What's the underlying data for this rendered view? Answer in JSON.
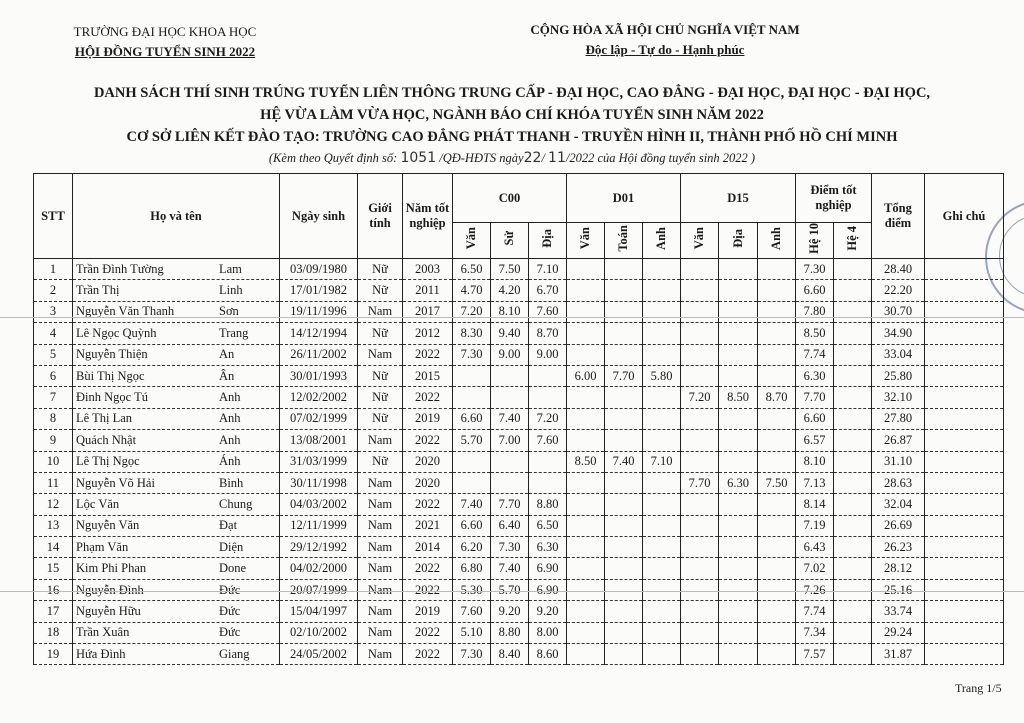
{
  "header_left": {
    "line1": "TRƯỜNG ĐẠI HỌC KHOA HỌC",
    "line2": "HỘI ĐỒNG TUYỂN SINH 2022"
  },
  "header_right": {
    "line1": "CỘNG HÒA XÃ HỘI CHỦ NGHĨA VIỆT NAM",
    "line2": "Độc lập - Tự do - Hạnh phúc"
  },
  "title": {
    "line1": "DANH SÁCH THÍ SINH TRÚNG TUYỂN LIÊN THÔNG TRUNG CẤP - ĐẠI HỌC, CAO ĐẲNG - ĐẠI HỌC, ĐẠI HỌC - ĐẠI HỌC,",
    "line2": "HỆ VỪA LÀM VỪA HỌC, NGÀNH BÁO CHÍ KHÓA TUYỂN SINH NĂM 2022",
    "line3": "CƠ SỞ LIÊN KẾT ĐÀO TẠO: TRƯỜNG CAO ĐẲNG PHÁT THANH - TRUYỀN HÌNH II, THÀNH PHỐ HỒ CHÍ MINH"
  },
  "attachment": {
    "prefix": "(Kèm theo Quyết định số: ",
    "decision_no": "1051",
    "mid": " /QĐ-HĐTS ngày",
    "day": "22",
    "sep": "/ ",
    "month": "11",
    "suffix": "/2022 của Hội đồng tuyển sinh 2022 )"
  },
  "columns": {
    "stt": "STT",
    "name": "Họ và tên",
    "dob": "Ngày sinh",
    "gender": "Giới tính",
    "year": "Năm tốt nghiệp",
    "c00": "C00",
    "d01": "D01",
    "d15": "D15",
    "grad": "Điểm tốt nghiệp",
    "total": "Tổng điểm",
    "note": "Ghi chú",
    "c00_sub": [
      "Văn",
      "Sử",
      "Địa"
    ],
    "d01_sub": [
      "Văn",
      "Toán",
      "Anh"
    ],
    "d15_sub": [
      "Văn",
      "Địa",
      "Anh"
    ],
    "grad_sub": [
      "Hệ 10",
      "Hệ 4"
    ]
  },
  "rows": [
    {
      "stt": "1",
      "surname": "Trần Đình Tường",
      "given": "Lam",
      "dob": "03/09/1980",
      "gender": "Nữ",
      "year": "2003",
      "c00": [
        "6.50",
        "7.50",
        "7.10"
      ],
      "d01": [
        "",
        "",
        ""
      ],
      "d15": [
        "",
        "",
        ""
      ],
      "h10": "7.30",
      "h4": "",
      "total": "28.40",
      "note": ""
    },
    {
      "stt": "2",
      "surname": "Trần Thị",
      "given": "Linh",
      "dob": "17/01/1982",
      "gender": "Nữ",
      "year": "2011",
      "c00": [
        "4.70",
        "4.20",
        "6.70"
      ],
      "d01": [
        "",
        "",
        ""
      ],
      "d15": [
        "",
        "",
        ""
      ],
      "h10": "6.60",
      "h4": "",
      "total": "22.20",
      "note": ""
    },
    {
      "stt": "3",
      "surname": "Nguyễn Văn Thanh",
      "given": "Sơn",
      "dob": "19/11/1996",
      "gender": "Nam",
      "year": "2017",
      "c00": [
        "7.20",
        "8.10",
        "7.60"
      ],
      "d01": [
        "",
        "",
        ""
      ],
      "d15": [
        "",
        "",
        ""
      ],
      "h10": "7.80",
      "h4": "",
      "total": "30.70",
      "note": ""
    },
    {
      "stt": "4",
      "surname": "Lê Ngọc Quỳnh",
      "given": "Trang",
      "dob": "14/12/1994",
      "gender": "Nữ",
      "year": "2012",
      "c00": [
        "8.30",
        "9.40",
        "8.70"
      ],
      "d01": [
        "",
        "",
        ""
      ],
      "d15": [
        "",
        "",
        ""
      ],
      "h10": "8.50",
      "h4": "",
      "total": "34.90",
      "note": ""
    },
    {
      "stt": "5",
      "surname": "Nguyễn Thiện",
      "given": "An",
      "dob": "26/11/2002",
      "gender": "Nam",
      "year": "2022",
      "c00": [
        "7.30",
        "9.00",
        "9.00"
      ],
      "d01": [
        "",
        "",
        ""
      ],
      "d15": [
        "",
        "",
        ""
      ],
      "h10": "7.74",
      "h4": "",
      "total": "33.04",
      "note": ""
    },
    {
      "stt": "6",
      "surname": "Bùi Thị Ngọc",
      "given": "Ân",
      "dob": "30/01/1993",
      "gender": "Nữ",
      "year": "2015",
      "c00": [
        "",
        "",
        ""
      ],
      "d01": [
        "6.00",
        "7.70",
        "5.80"
      ],
      "d15": [
        "",
        "",
        ""
      ],
      "h10": "6.30",
      "h4": "",
      "total": "25.80",
      "note": ""
    },
    {
      "stt": "7",
      "surname": "Đinh Ngọc Tú",
      "given": "Anh",
      "dob": "12/02/2002",
      "gender": "Nữ",
      "year": "2022",
      "c00": [
        "",
        "",
        ""
      ],
      "d01": [
        "",
        "",
        ""
      ],
      "d15": [
        "7.20",
        "8.50",
        "8.70"
      ],
      "h10": "7.70",
      "h4": "",
      "total": "32.10",
      "note": ""
    },
    {
      "stt": "8",
      "surname": "Lê Thị Lan",
      "given": "Anh",
      "dob": "07/02/1999",
      "gender": "Nữ",
      "year": "2019",
      "c00": [
        "6.60",
        "7.40",
        "7.20"
      ],
      "d01": [
        "",
        "",
        ""
      ],
      "d15": [
        "",
        "",
        ""
      ],
      "h10": "6.60",
      "h4": "",
      "total": "27.80",
      "note": ""
    },
    {
      "stt": "9",
      "surname": "Quách Nhật",
      "given": "Anh",
      "dob": "13/08/2001",
      "gender": "Nam",
      "year": "2022",
      "c00": [
        "5.70",
        "7.00",
        "7.60"
      ],
      "d01": [
        "",
        "",
        ""
      ],
      "d15": [
        "",
        "",
        ""
      ],
      "h10": "6.57",
      "h4": "",
      "total": "26.87",
      "note": ""
    },
    {
      "stt": "10",
      "surname": "Lê Thị Ngọc",
      "given": "Ánh",
      "dob": "31/03/1999",
      "gender": "Nữ",
      "year": "2020",
      "c00": [
        "",
        "",
        ""
      ],
      "d01": [
        "8.50",
        "7.40",
        "7.10"
      ],
      "d15": [
        "",
        "",
        ""
      ],
      "h10": "8.10",
      "h4": "",
      "total": "31.10",
      "note": ""
    },
    {
      "stt": "11",
      "surname": "Nguyễn Võ Hải",
      "given": "Bình",
      "dob": "30/11/1998",
      "gender": "Nam",
      "year": "2020",
      "c00": [
        "",
        "",
        ""
      ],
      "d01": [
        "",
        "",
        ""
      ],
      "d15": [
        "7.70",
        "6.30",
        "7.50"
      ],
      "h10": "7.13",
      "h4": "",
      "total": "28.63",
      "note": ""
    },
    {
      "stt": "12",
      "surname": "Lộc Văn",
      "given": "Chung",
      "dob": "04/03/2002",
      "gender": "Nam",
      "year": "2022",
      "c00": [
        "7.40",
        "7.70",
        "8.80"
      ],
      "d01": [
        "",
        "",
        ""
      ],
      "d15": [
        "",
        "",
        ""
      ],
      "h10": "8.14",
      "h4": "",
      "total": "32.04",
      "note": ""
    },
    {
      "stt": "13",
      "surname": "Nguyễn Văn",
      "given": "Đạt",
      "dob": "12/11/1999",
      "gender": "Nam",
      "year": "2021",
      "c00": [
        "6.60",
        "6.40",
        "6.50"
      ],
      "d01": [
        "",
        "",
        ""
      ],
      "d15": [
        "",
        "",
        ""
      ],
      "h10": "7.19",
      "h4": "",
      "total": "26.69",
      "note": ""
    },
    {
      "stt": "14",
      "surname": "Phạm Văn",
      "given": "Diện",
      "dob": "29/12/1992",
      "gender": "Nam",
      "year": "2014",
      "c00": [
        "6.20",
        "7.30",
        "6.30"
      ],
      "d01": [
        "",
        "",
        ""
      ],
      "d15": [
        "",
        "",
        ""
      ],
      "h10": "6.43",
      "h4": "",
      "total": "26.23",
      "note": ""
    },
    {
      "stt": "15",
      "surname": "Kim Phi Phan",
      "given": "Done",
      "dob": "04/02/2000",
      "gender": "Nam",
      "year": "2022",
      "c00": [
        "6.80",
        "7.40",
        "6.90"
      ],
      "d01": [
        "",
        "",
        ""
      ],
      "d15": [
        "",
        "",
        ""
      ],
      "h10": "7.02",
      "h4": "",
      "total": "28.12",
      "note": ""
    },
    {
      "stt": "16",
      "surname": "Nguyễn Đình",
      "given": "Đức",
      "dob": "20/07/1999",
      "gender": "Nam",
      "year": "2022",
      "c00": [
        "5.30",
        "5.70",
        "6.90"
      ],
      "d01": [
        "",
        "",
        ""
      ],
      "d15": [
        "",
        "",
        ""
      ],
      "h10": "7.26",
      "h4": "",
      "total": "25.16",
      "note": ""
    },
    {
      "stt": "17",
      "surname": "Nguyễn Hữu",
      "given": "Đức",
      "dob": "15/04/1997",
      "gender": "Nam",
      "year": "2019",
      "c00": [
        "7.60",
        "9.20",
        "9.20"
      ],
      "d01": [
        "",
        "",
        ""
      ],
      "d15": [
        "",
        "",
        ""
      ],
      "h10": "7.74",
      "h4": "",
      "total": "33.74",
      "note": ""
    },
    {
      "stt": "18",
      "surname": "Trần Xuân",
      "given": "Đức",
      "dob": "02/10/2002",
      "gender": "Nam",
      "year": "2022",
      "c00": [
        "5.10",
        "8.80",
        "8.00"
      ],
      "d01": [
        "",
        "",
        ""
      ],
      "d15": [
        "",
        "",
        ""
      ],
      "h10": "7.34",
      "h4": "",
      "total": "29.24",
      "note": ""
    },
    {
      "stt": "19",
      "surname": "Hứa Đình",
      "given": "Giang",
      "dob": "24/05/2002",
      "gender": "Nam",
      "year": "2022",
      "c00": [
        "7.30",
        "8.40",
        "8.60"
      ],
      "d01": [
        "",
        "",
        ""
      ],
      "d15": [
        "",
        "",
        ""
      ],
      "h10": "7.57",
      "h4": "",
      "total": "31.87",
      "note": ""
    }
  ],
  "footer": {
    "page": "Trang 1/5"
  },
  "colors": {
    "ink": "#1a1a1a",
    "stamp": "#7a86a8"
  }
}
